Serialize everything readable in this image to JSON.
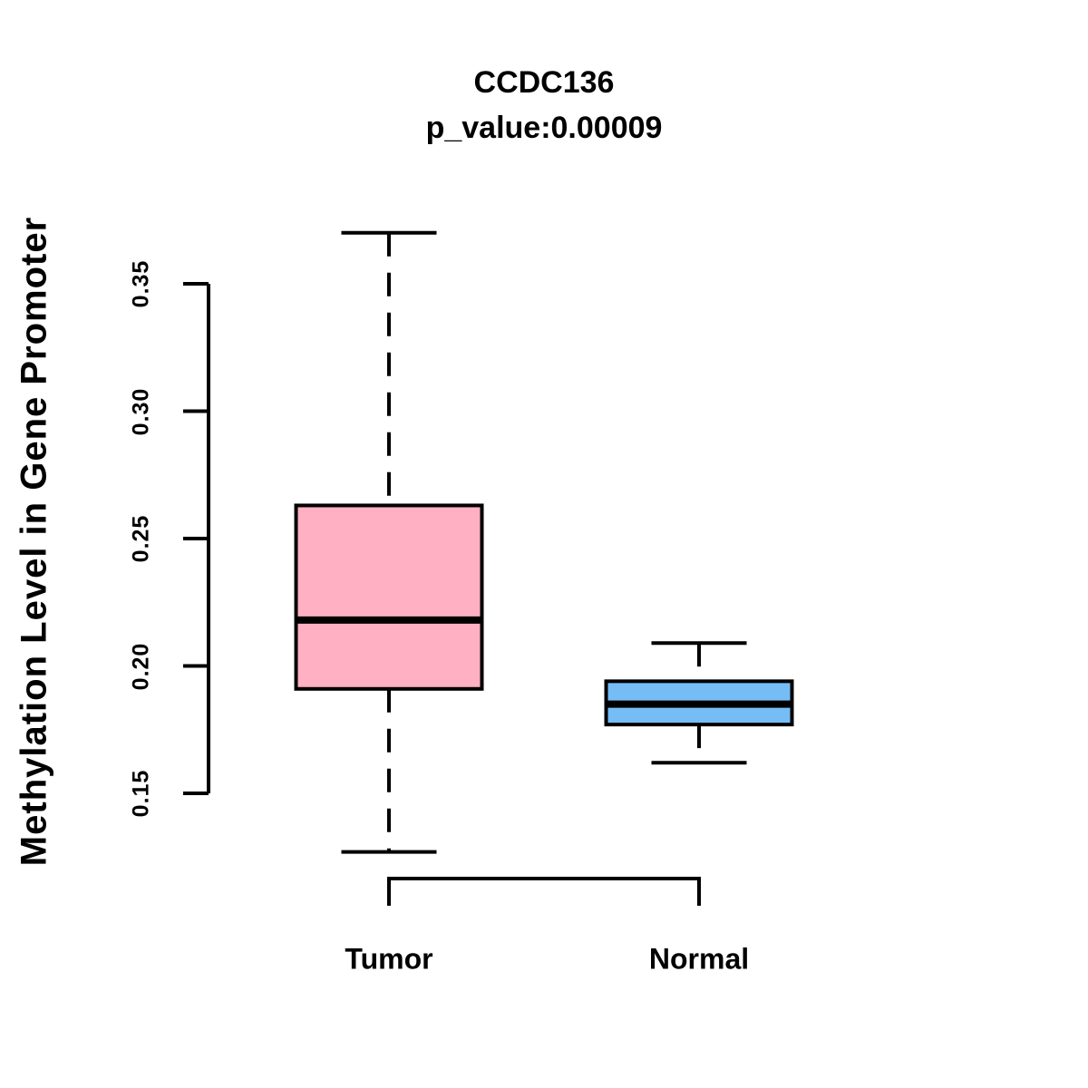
{
  "title": "CCDC136",
  "subtitle": "p_value:0.00009",
  "y_axis": {
    "label": "Methylation Level in Gene Promoter",
    "tick_labels": [
      "0.15",
      "0.20",
      "0.25",
      "0.30",
      "0.35"
    ],
    "range": [
      0.15,
      0.35
    ]
  },
  "x_axis": {
    "categories": [
      "Tumor",
      "Normal"
    ]
  },
  "chart_data": {
    "type": "boxplot",
    "title": "CCDC136",
    "subtitle": "p_value:0.00009",
    "ylabel": "Methylation Level in Gene Promoter",
    "xlabel": "",
    "categories": [
      "Tumor",
      "Normal"
    ],
    "yticks": [
      0.15,
      0.2,
      0.25,
      0.3,
      0.35
    ],
    "ytick_labels": [
      "0.15",
      "0.20",
      "0.25",
      "0.30",
      "0.35"
    ],
    "ylim_axis": [
      0.15,
      0.35
    ],
    "grid": false,
    "legend": "none",
    "series": [
      {
        "name": "Tumor",
        "color": "#FFB0C3",
        "whisker_low": 0.127,
        "q1": 0.191,
        "median": 0.218,
        "q3": 0.263,
        "whisker_high": 0.37
      },
      {
        "name": "Normal",
        "color": "#76BDF6",
        "whisker_low": 0.162,
        "q1": 0.177,
        "median": 0.185,
        "q3": 0.194,
        "whisker_high": 0.209
      }
    ],
    "colors": {
      "tumor_fill": "#FFB0C3",
      "normal_fill": "#76BDF6",
      "stroke": "#000000",
      "background": "#FFFFFF"
    }
  }
}
